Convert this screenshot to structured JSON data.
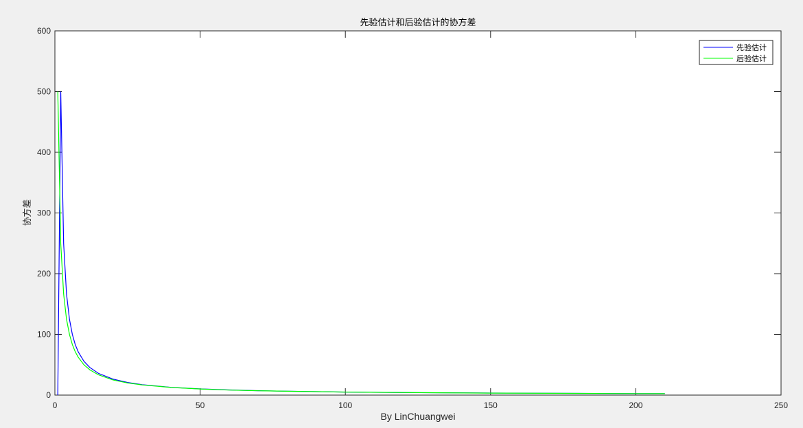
{
  "window": {
    "background": "#f0f0f0"
  },
  "chart_data": {
    "type": "line",
    "title": "先验估计和后验估计的协方差",
    "xlabel": "By LinChuangwei",
    "ylabel": "协方差",
    "xlim": [
      0,
      250
    ],
    "ylim": [
      0,
      600
    ],
    "xticks": [
      0,
      50,
      100,
      150,
      200,
      250
    ],
    "yticks": [
      0,
      100,
      200,
      300,
      400,
      500,
      600
    ],
    "xtick_labels": [
      "0",
      "50",
      "100",
      "150",
      "200",
      "250"
    ],
    "ytick_labels": [
      "0",
      "100",
      "200",
      "300",
      "400",
      "500",
      "600"
    ],
    "grid": false,
    "legend_position": "top-right",
    "series": [
      {
        "name": "先验估计",
        "color": "#0000ff",
        "x": [
          1,
          2,
          3,
          4,
          5,
          6,
          7,
          8,
          10,
          12,
          15,
          20,
          25,
          30,
          40,
          50,
          60,
          70,
          80,
          100,
          120,
          150,
          180,
          200,
          210
        ],
        "y": [
          0,
          500,
          250,
          166.7,
          125,
          100,
          83.3,
          71.4,
          55.6,
          45.5,
          35.7,
          26.3,
          20.8,
          17.2,
          12.8,
          10.2,
          8.5,
          7.2,
          6.3,
          5.0,
          4.2,
          3.4,
          2.8,
          2.5,
          2.4
        ]
      },
      {
        "name": "后验估计",
        "color": "#00ff00",
        "x": [
          1,
          2,
          3,
          4,
          5,
          6,
          7,
          8,
          10,
          12,
          15,
          20,
          25,
          30,
          40,
          50,
          60,
          70,
          80,
          100,
          120,
          150,
          180,
          200,
          210
        ],
        "y": [
          500,
          250,
          166.7,
          125,
          100,
          83.3,
          71.4,
          62.5,
          50,
          41.7,
          33.3,
          25,
          20,
          16.7,
          12.5,
          10,
          8.3,
          7.1,
          6.3,
          5.0,
          4.2,
          3.3,
          2.8,
          2.5,
          2.4
        ]
      }
    ]
  }
}
